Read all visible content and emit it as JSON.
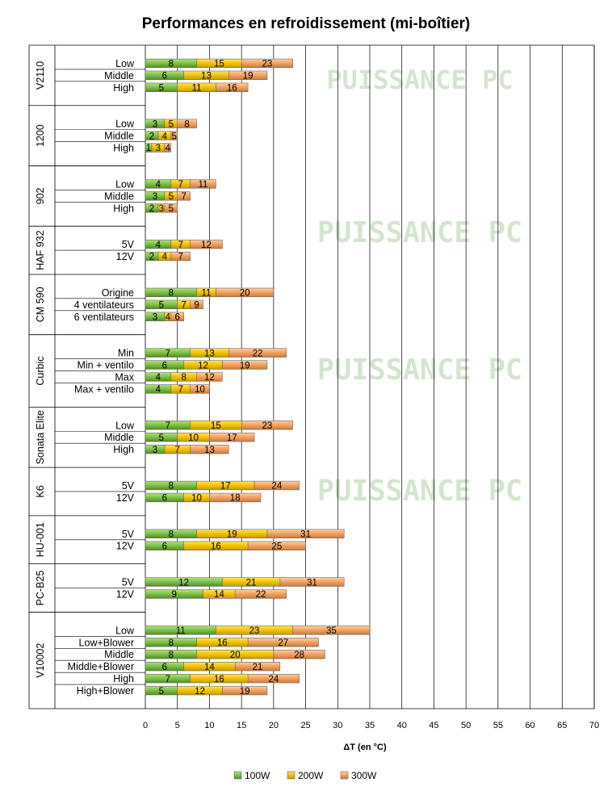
{
  "chart_data": {
    "type": "bar",
    "orientation": "horizontal",
    "stacked": true,
    "title": "Performances en refroidissement (mi-boîtier)",
    "xlabel": "ΔT (en °C)",
    "xlim": [
      0,
      70
    ],
    "x_ticks": [
      0,
      5,
      10,
      15,
      20,
      25,
      30,
      35,
      40,
      45,
      50,
      55,
      60,
      65,
      70
    ],
    "grid": true,
    "legend_position": "bottom",
    "watermark": "PUISSANCE PC",
    "series": [
      {
        "name": "100W",
        "color": "#7dc043"
      },
      {
        "name": "200W",
        "color": "#f2c200"
      },
      {
        "name": "300W",
        "color": "#f0a060"
      }
    ],
    "groups": [
      {
        "name": "V2110",
        "rows": [
          {
            "label": "Low",
            "values": [
              8,
              15,
              23
            ]
          },
          {
            "label": "Middle",
            "values": [
              6,
              13,
              19
            ]
          },
          {
            "label": "High",
            "values": [
              5,
              11,
              16
            ]
          }
        ]
      },
      {
        "name": "1200",
        "rows": [
          {
            "label": "Low",
            "values": [
              3,
              5,
              8
            ]
          },
          {
            "label": "Middle",
            "values": [
              2,
              4,
              5
            ]
          },
          {
            "label": "High",
            "values": [
              1,
              3,
              4
            ]
          }
        ]
      },
      {
        "name": "902",
        "rows": [
          {
            "label": "Low",
            "values": [
              4,
              7,
              11
            ]
          },
          {
            "label": "Middle",
            "values": [
              3,
              5,
              7
            ]
          },
          {
            "label": "High",
            "values": [
              2,
              3,
              5
            ]
          }
        ]
      },
      {
        "name": "HAF 932",
        "rows": [
          {
            "label": "5V",
            "values": [
              4,
              7,
              12
            ]
          },
          {
            "label": "12V",
            "values": [
              2,
              4,
              7
            ]
          }
        ]
      },
      {
        "name": "CM 590",
        "rows": [
          {
            "label": "Origine",
            "values": [
              8,
              11,
              20
            ]
          },
          {
            "label": "4 ventilateurs",
            "values": [
              5,
              7,
              9
            ]
          },
          {
            "label": "6 ventilateurs",
            "values": [
              3,
              4,
              6
            ]
          }
        ]
      },
      {
        "name": "Curbic",
        "rows": [
          {
            "label": "Min",
            "values": [
              7,
              13,
              22
            ]
          },
          {
            "label": "Min + ventilo",
            "values": [
              6,
              12,
              19
            ]
          },
          {
            "label": "Max",
            "values": [
              4,
              8,
              12
            ]
          },
          {
            "label": "Max + ventilo",
            "values": [
              4,
              7,
              10
            ]
          }
        ]
      },
      {
        "name": "Sonata Elite",
        "rows": [
          {
            "label": "Low",
            "values": [
              7,
              15,
              23
            ]
          },
          {
            "label": "Middle",
            "values": [
              5,
              10,
              17
            ]
          },
          {
            "label": "High",
            "values": [
              3,
              7,
              13
            ]
          }
        ]
      },
      {
        "name": "K6",
        "rows": [
          {
            "label": "5V",
            "values": [
              8,
              17,
              24
            ]
          },
          {
            "label": "12V",
            "values": [
              6,
              10,
              18
            ]
          }
        ]
      },
      {
        "name": "HU-001",
        "rows": [
          {
            "label": "5V",
            "values": [
              8,
              19,
              31
            ]
          },
          {
            "label": "12V",
            "values": [
              6,
              16,
              25
            ]
          }
        ]
      },
      {
        "name": "PC-B25",
        "rows": [
          {
            "label": "5V",
            "values": [
              12,
              21,
              31
            ]
          },
          {
            "label": "12V",
            "values": [
              9,
              14,
              22
            ]
          }
        ]
      },
      {
        "name": "V10002",
        "rows": [
          {
            "label": "Low",
            "values": [
              11,
              23,
              35
            ]
          },
          {
            "label": "Low+Blower",
            "values": [
              8,
              16,
              27
            ]
          },
          {
            "label": "Middle",
            "values": [
              8,
              20,
              28
            ]
          },
          {
            "label": "Middle+Blower",
            "values": [
              6,
              14,
              21
            ]
          },
          {
            "label": "High",
            "values": [
              7,
              16,
              24
            ]
          },
          {
            "label": "High+Blower",
            "values": [
              5,
              12,
              19
            ]
          }
        ]
      }
    ]
  }
}
